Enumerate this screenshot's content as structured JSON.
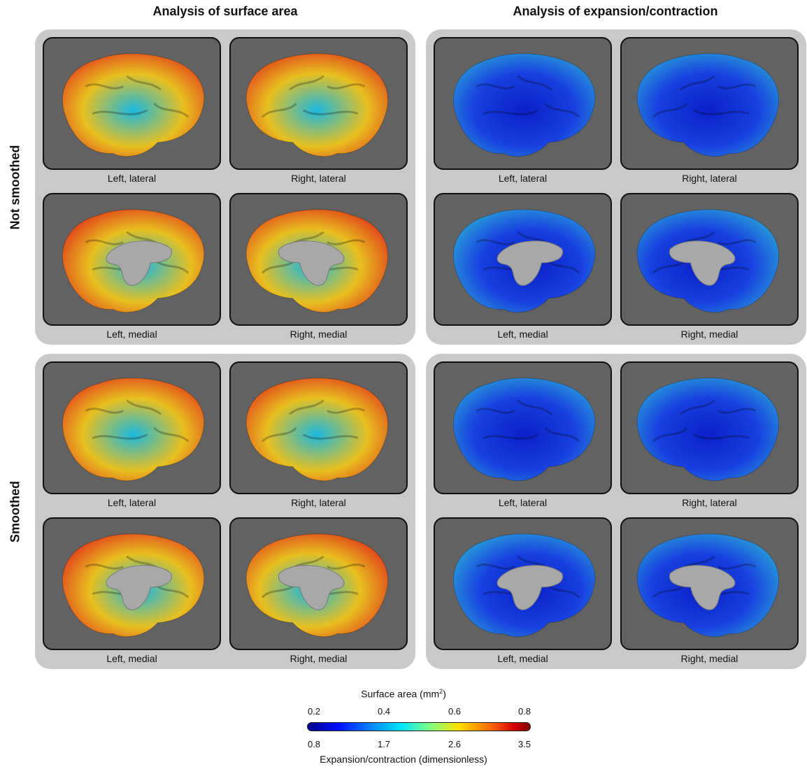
{
  "columns": [
    {
      "title": "Analysis of surface area"
    },
    {
      "title": "Analysis of expansion/contraction"
    }
  ],
  "rows": [
    {
      "title": "Not smoothed"
    },
    {
      "title": "Smoothed"
    }
  ],
  "captions": [
    "Left, lateral",
    "Right, lateral",
    "Left, medial",
    "Right, medial"
  ],
  "colorbar": {
    "title": "Surface area (mm",
    "title_sup": "2",
    "title_close": ")",
    "top_ticks": [
      "0.2",
      "0.4",
      "0.6",
      "0.8"
    ],
    "bottom_ticks": [
      "0.8",
      "1.7",
      "2.6",
      "3.5"
    ],
    "subtitle": "Expansion/contraction (dimensionless)"
  }
}
